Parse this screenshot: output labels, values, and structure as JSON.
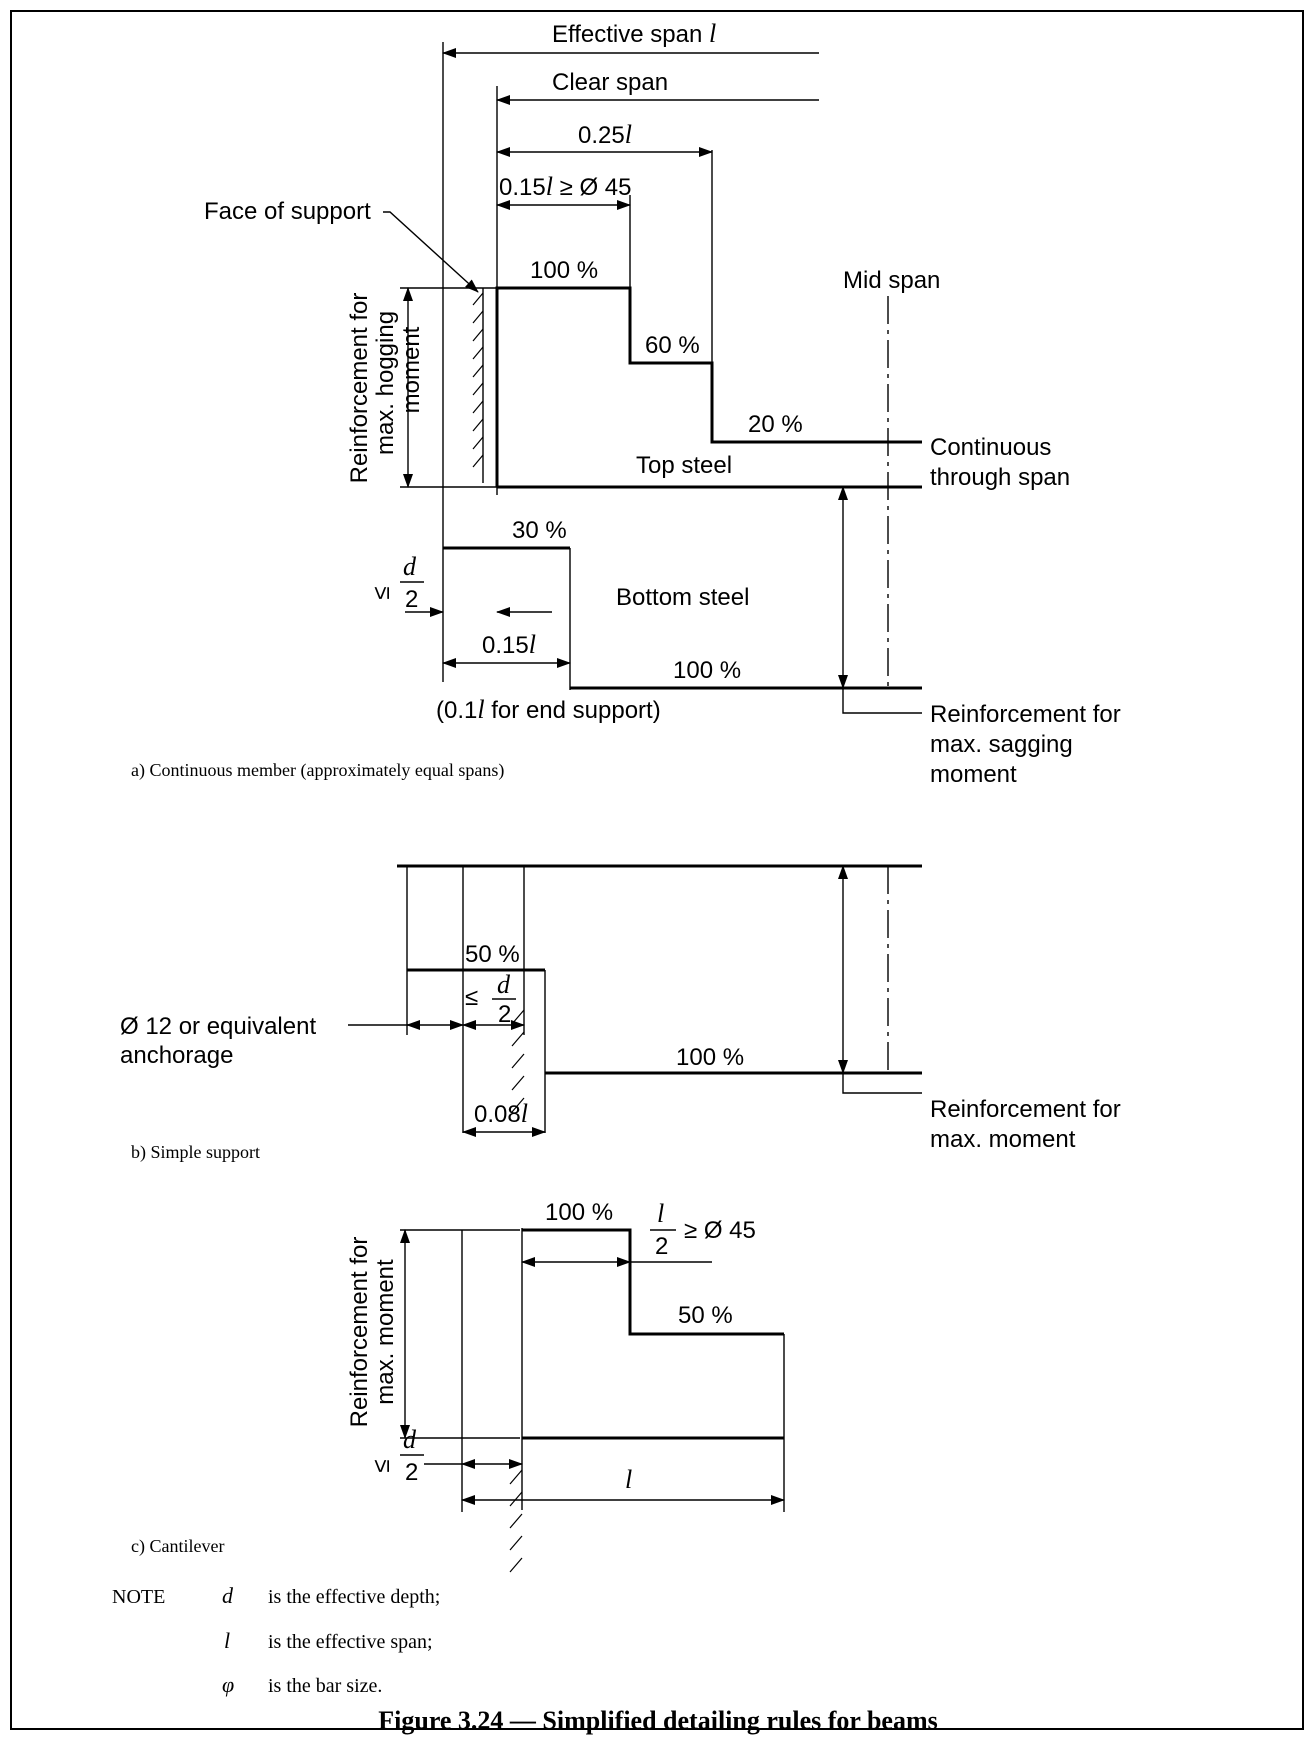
{
  "a": {
    "effective_span": "Effective span ",
    "l": "l",
    "clear_span": "Clear span",
    "quarter_l": "0.25",
    "ext_top": "0.15",
    "ext_top_tail": " ≥ Ø 45",
    "face_of_support": "Face of support",
    "p100": "100 %",
    "p60": "60 %",
    "p20": "20 %",
    "p30": "30 %",
    "p100b": "100 %",
    "mid_span": "Mid span",
    "top_steel": "Top steel",
    "bottom_steel": "Bottom steel",
    "continuous_1": "Continuous",
    "continuous_2": "through span",
    "hog_1": "Reinforcement for",
    "hog_2": "max. hogging",
    "hog_3": "moment",
    "le": "≤",
    "d": "d",
    "two": "2",
    "ext_bot": "0.15",
    "end_support_pre": "(0.1",
    "end_support_post": " for end support)",
    "sag_1": "Reinforcement for",
    "sag_2": "max. sagging",
    "sag_3": "moment",
    "caption": "a) Continuous member (approximately equal spans)"
  },
  "b": {
    "p50": "50 %",
    "p100": "100 %",
    "anchor_1": "Ø 12 or equivalent",
    "anchor_2": "anchorage",
    "ext": "0.08",
    "mm_1": "Reinforcement for",
    "mm_2": "max. moment",
    "caption": "b) Simple support"
  },
  "c": {
    "p100": "100 %",
    "p50": "50 %",
    "half_tail": "≥ Ø 45",
    "mm_1": "Reinforcement for",
    "mm_2": "max. moment",
    "caption": "c) Cantilever"
  },
  "note": {
    "label": "NOTE",
    "sym1": "d",
    "def1": "is the effective depth;",
    "sym2": "l",
    "def2": "is the effective span;",
    "sym3": "φ",
    "def3": "is the bar size."
  },
  "figure_title": "Figure 3.24 — Simplified detailing rules for beams"
}
